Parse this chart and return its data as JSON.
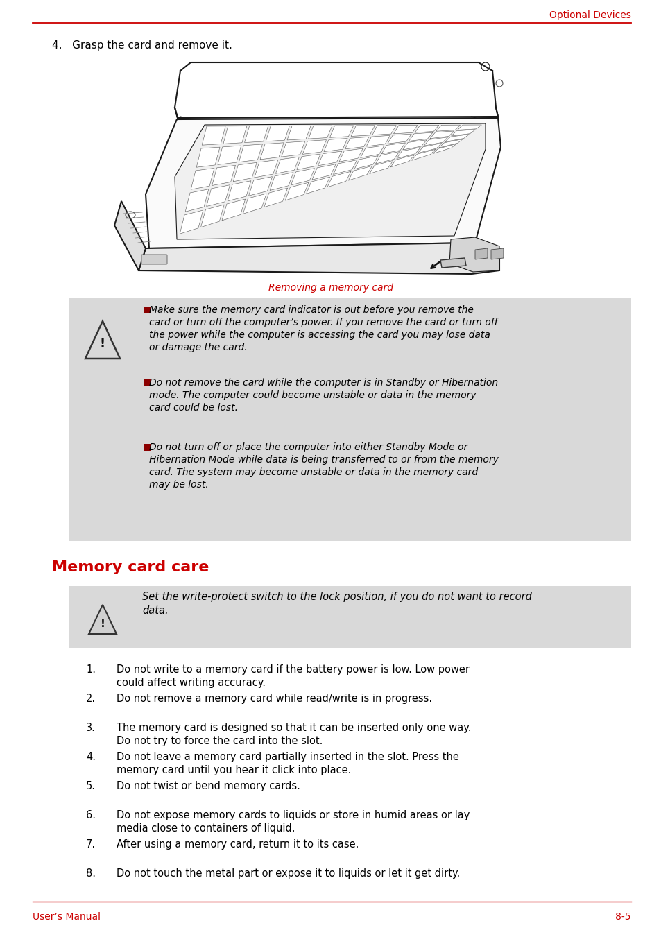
{
  "page_bg": "#ffffff",
  "header_text": "Optional Devices",
  "header_color": "#cc0000",
  "header_line_color": "#cc0000",
  "footer_line_color": "#cc0000",
  "footer_left": "User’s Manual",
  "footer_right": "8-5",
  "footer_color": "#cc0000",
  "step4_text": "4.   Grasp the card and remove it.",
  "caption_text": "Removing a memory card",
  "caption_color": "#cc0000",
  "warning_bg": "#d9d9d9",
  "warning_bullet_color": "#8b0000",
  "warning_items": [
    "Make sure the memory card indicator is out before you remove the\ncard or turn off the computer’s power. If you remove the card or turn off\nthe power while the computer is accessing the card you may lose data\nor damage the card.",
    "Do not remove the card while the computer is in Standby or Hibernation\nmode. The computer could become unstable or data in the memory\ncard could be lost.",
    "Do not turn off or place the computer into either Standby Mode or\nHibernation Mode while data is being transferred to or from the memory\ncard. The system may become unstable or data in the memory card\nmay be lost."
  ],
  "section_title": "Memory card care",
  "section_title_color": "#cc0000",
  "note_text": "Set the write-protect switch to the lock position, if you do not want to record\ndata.",
  "note_bg": "#d9d9d9",
  "numbered_items": [
    "Do not write to a memory card if the battery power is low. Low power\ncould affect writing accuracy.",
    "Do not remove a memory card while read/write is in progress.",
    "The memory card is designed so that it can be inserted only one way.\nDo not try to force the card into the slot.",
    "Do not leave a memory card partially inserted in the slot. Press the\nmemory card until you hear it click into place.",
    "Do not twist or bend memory cards.",
    "Do not expose memory cards to liquids or store in humid areas or lay\nmedia close to containers of liquid.",
    "After using a memory card, return it to its case.",
    "Do not touch the metal part or expose it to liquids or let it get dirty."
  ]
}
